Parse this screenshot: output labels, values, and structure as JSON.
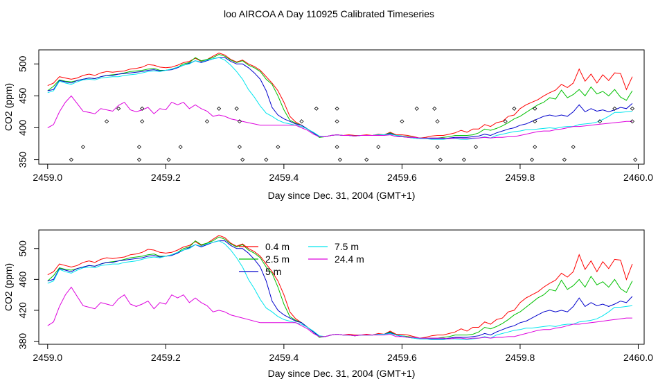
{
  "title": "loo AIRCOA A  Day 110925  Calibrated Timeseries",
  "legend_labels": [
    "0.4 m",
    "2.5 m",
    "5 m",
    "7.5 m",
    "24.4 m"
  ],
  "colors": {
    "0.4 m": "#ff0000",
    "2.5 m": "#00c000",
    "5 m": "#0000cc",
    "7.5 m": "#00e5ee",
    "24.4 m": "#dd00dd",
    "markers": "#000000"
  },
  "chart_data": [
    {
      "type": "line",
      "xlabel": "Day since Dec. 31, 2004 (GMT+1)",
      "ylabel": "CO2 (ppm)",
      "xlim": [
        2458.985,
        2460.01
      ],
      "ylim": [
        343,
        522
      ],
      "xticks": [
        2459.0,
        2459.2,
        2459.4,
        2459.6,
        2459.8,
        2460.0
      ],
      "xtick_labels": [
        "2459.0",
        "2459.2",
        "2459.4",
        "2459.6",
        "2459.8",
        "2460.0"
      ],
      "yticks": [
        350,
        400,
        450,
        500
      ],
      "ytick_labels": [
        "350",
        "400",
        "450",
        "500"
      ],
      "x": [
        2459.0,
        2459.01,
        2459.02,
        2459.03,
        2459.04,
        2459.05,
        2459.06,
        2459.07,
        2459.08,
        2459.09,
        2459.1,
        2459.11,
        2459.12,
        2459.13,
        2459.14,
        2459.15,
        2459.16,
        2459.17,
        2459.18,
        2459.19,
        2459.2,
        2459.21,
        2459.22,
        2459.23,
        2459.24,
        2459.25,
        2459.26,
        2459.27,
        2459.28,
        2459.29,
        2459.3,
        2459.31,
        2459.32,
        2459.33,
        2459.34,
        2459.35,
        2459.36,
        2459.37,
        2459.38,
        2459.39,
        2459.4,
        2459.41,
        2459.42,
        2459.43,
        2459.44,
        2459.45,
        2459.46,
        2459.47,
        2459.48,
        2459.49,
        2459.5,
        2459.51,
        2459.52,
        2459.53,
        2459.54,
        2459.55,
        2459.56,
        2459.57,
        2459.58,
        2459.59,
        2459.6,
        2459.61,
        2459.62,
        2459.63,
        2459.64,
        2459.65,
        2459.66,
        2459.67,
        2459.68,
        2459.69,
        2459.7,
        2459.71,
        2459.72,
        2459.73,
        2459.74,
        2459.75,
        2459.76,
        2459.77,
        2459.78,
        2459.79,
        2459.8,
        2459.81,
        2459.82,
        2459.83,
        2459.84,
        2459.85,
        2459.86,
        2459.87,
        2459.88,
        2459.89,
        2459.9,
        2459.91,
        2459.92,
        2459.93,
        2459.94,
        2459.95,
        2459.96,
        2459.97,
        2459.98,
        2459.99
      ],
      "series": [
        {
          "name": "0.4 m",
          "color": "#ff0000",
          "values": [
            466,
            470,
            480,
            478,
            476,
            478,
            482,
            484,
            482,
            486,
            488,
            487,
            488,
            489,
            492,
            493,
            495,
            499,
            498,
            495,
            494,
            495,
            498,
            502,
            504,
            509,
            504,
            507,
            512,
            517,
            514,
            507,
            503,
            506,
            500,
            496,
            490,
            480,
            470,
            458,
            440,
            418,
            409,
            404,
            398,
            392,
            386,
            386,
            388,
            389,
            388,
            389,
            388,
            388,
            389,
            388,
            390,
            389,
            393,
            389,
            389,
            388,
            386,
            384,
            385,
            387,
            388,
            388,
            390,
            392,
            396,
            393,
            398,
            398,
            405,
            402,
            408,
            410,
            418,
            420,
            430,
            436,
            440,
            444,
            450,
            455,
            459,
            468,
            463,
            470,
            492,
            473,
            484,
            470,
            483,
            474,
            486,
            485,
            460,
            480
          ]
        },
        {
          "name": "2.5 m",
          "color": "#00c000",
          "values": [
            458,
            465,
            475,
            473,
            472,
            474,
            476,
            478,
            477,
            480,
            482,
            483,
            484,
            486,
            488,
            489,
            490,
            492,
            493,
            490,
            490,
            492,
            495,
            500,
            502,
            510,
            505,
            507,
            510,
            515,
            512,
            506,
            502,
            505,
            498,
            494,
            488,
            476,
            468,
            450,
            428,
            412,
            407,
            404,
            398,
            392,
            385,
            386,
            388,
            389,
            388,
            388,
            387,
            388,
            388,
            388,
            389,
            389,
            392,
            388,
            387,
            386,
            385,
            384,
            384,
            384,
            384,
            385,
            386,
            388,
            388,
            388,
            389,
            392,
            398,
            396,
            399,
            403,
            408,
            414,
            418,
            424,
            430,
            436,
            440,
            447,
            445,
            459,
            447,
            452,
            460,
            450,
            464,
            453,
            457,
            450,
            460,
            448,
            443,
            458
          ]
        },
        {
          "name": "5 m",
          "color": "#0000cc",
          "values": [
            458,
            460,
            474,
            472,
            470,
            474,
            476,
            478,
            477,
            480,
            482,
            482,
            484,
            485,
            486,
            487,
            488,
            490,
            491,
            489,
            490,
            491,
            494,
            498,
            501,
            505,
            502,
            505,
            508,
            510,
            510,
            504,
            500,
            500,
            494,
            486,
            476,
            458,
            432,
            420,
            414,
            410,
            406,
            404,
            398,
            392,
            386,
            386,
            388,
            389,
            388,
            388,
            387,
            388,
            388,
            388,
            389,
            389,
            391,
            388,
            386,
            385,
            384,
            383,
            383,
            383,
            383,
            383,
            384,
            385,
            385,
            385,
            386,
            387,
            390,
            388,
            392,
            395,
            398,
            400,
            404,
            406,
            410,
            414,
            418,
            420,
            418,
            420,
            418,
            425,
            436,
            425,
            430,
            426,
            428,
            425,
            428,
            432,
            430,
            438
          ]
        },
        {
          "name": "7.5 m",
          "color": "#00e5ee",
          "values": [
            455,
            458,
            473,
            470,
            468,
            472,
            475,
            476,
            475,
            478,
            479,
            480,
            480,
            482,
            483,
            484,
            486,
            488,
            489,
            488,
            490,
            492,
            495,
            498,
            500,
            505,
            503,
            506,
            508,
            510,
            506,
            498,
            488,
            476,
            460,
            448,
            434,
            423,
            418,
            412,
            408,
            406,
            404,
            402,
            398,
            393,
            387,
            386,
            388,
            389,
            388,
            388,
            387,
            388,
            388,
            388,
            389,
            389,
            390,
            388,
            387,
            385,
            384,
            383,
            383,
            382,
            382,
            382,
            383,
            383,
            382,
            382,
            383,
            384,
            386,
            384,
            388,
            390,
            392,
            394,
            395,
            397,
            397,
            398,
            399,
            400,
            399,
            401,
            402,
            402,
            405,
            406,
            407,
            409,
            413,
            418,
            424,
            424,
            425,
            426
          ]
        },
        {
          "name": "24.4 m",
          "color": "#dd00dd",
          "values": [
            400,
            405,
            425,
            440,
            450,
            438,
            426,
            424,
            422,
            430,
            428,
            426,
            435,
            440,
            428,
            425,
            428,
            432,
            422,
            430,
            428,
            440,
            436,
            440,
            430,
            436,
            430,
            426,
            418,
            420,
            418,
            414,
            412,
            410,
            408,
            406,
            404,
            404,
            404,
            404,
            404,
            404,
            404,
            400,
            396,
            390,
            386,
            386,
            388,
            389,
            388,
            388,
            387,
            388,
            388,
            388,
            388,
            388,
            389,
            386,
            386,
            385,
            385,
            384,
            384,
            384,
            384,
            384,
            383,
            384,
            384,
            383,
            384,
            384,
            385,
            384,
            385,
            385,
            386,
            386,
            388,
            390,
            392,
            394,
            395,
            395,
            397,
            398,
            400,
            402,
            402,
            403,
            404,
            405,
            406,
            407,
            408,
            409,
            410,
            410
          ]
        }
      ],
      "markers": {
        "x": [
          2459.04,
          2459.06,
          2459.1,
          2459.12,
          2459.155,
          2459.155,
          2459.16,
          2459.16,
          2459.205,
          2459.225,
          2459.27,
          2459.29,
          2459.32,
          2459.325,
          2459.325,
          2459.33,
          2459.37,
          2459.39,
          2459.43,
          2459.455,
          2459.49,
          2459.49,
          2459.49,
          2459.495,
          2459.54,
          2459.56,
          2459.6,
          2459.625,
          2459.655,
          2459.66,
          2459.66,
          2459.665,
          2459.705,
          2459.725,
          2459.775,
          2459.79,
          2459.82,
          2459.825,
          2459.825,
          2459.825,
          2459.875,
          2459.89,
          2459.935,
          2459.96,
          2459.99,
          2459.99,
          2459.995
        ],
        "y": [
          350,
          370,
          410,
          430,
          350,
          370,
          410,
          430,
          350,
          370,
          410,
          430,
          430,
          410,
          370,
          350,
          350,
          370,
          410,
          430,
          410,
          430,
          370,
          350,
          350,
          370,
          410,
          430,
          430,
          410,
          370,
          350,
          350,
          370,
          410,
          430,
          350,
          370,
          410,
          430,
          350,
          370,
          410,
          430,
          430,
          410,
          350
        ]
      }
    },
    {
      "type": "line",
      "xlabel": "Day since Dec. 31, 2004 (GMT+1)",
      "ylabel": "CO2 (ppm)",
      "xlim": [
        2458.985,
        2460.01
      ],
      "ylim": [
        376,
        524
      ],
      "xticks": [
        2459.0,
        2459.2,
        2459.4,
        2459.6,
        2459.8,
        2460.0
      ],
      "xtick_labels": [
        "2459.0",
        "2459.2",
        "2459.4",
        "2459.6",
        "2459.8",
        "2460.0"
      ],
      "yticks": [
        380,
        420,
        460,
        500
      ],
      "ytick_labels": [
        "380",
        "420",
        "460",
        "500"
      ],
      "legend": "top-center",
      "series_ref": "same as first panel"
    }
  ]
}
